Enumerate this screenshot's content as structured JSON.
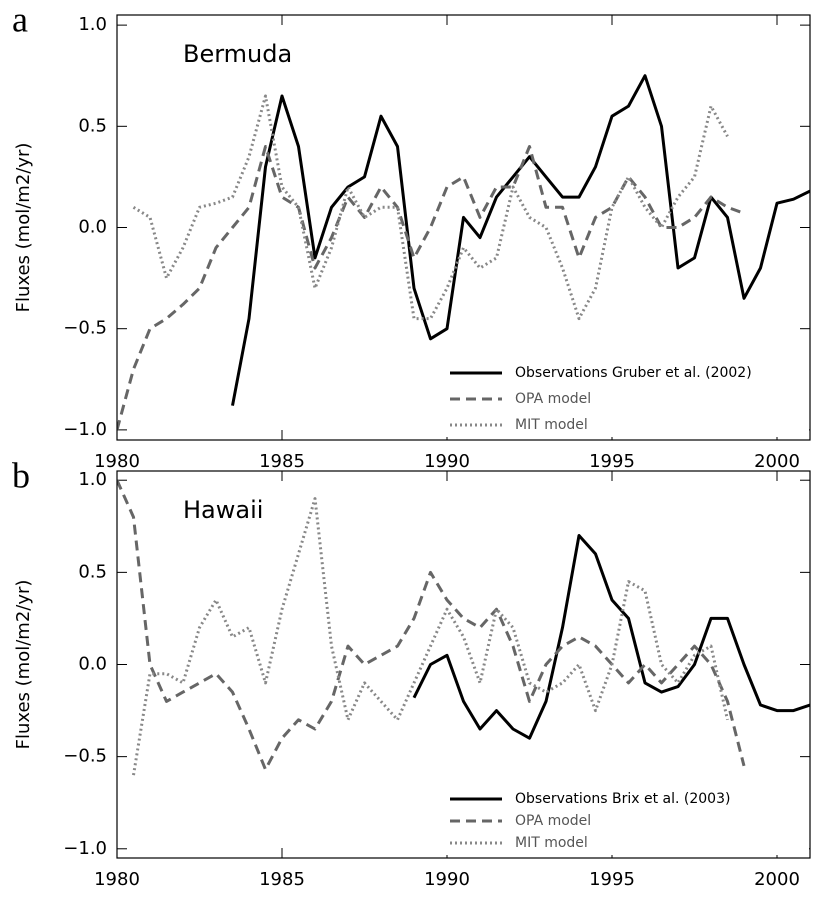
{
  "chart_data": [
    {
      "type": "line",
      "panel_label": "a",
      "title": "Bermuda",
      "ylabel": "Fluxes (mol/m2/yr)",
      "x": [
        1980,
        1980.5,
        1981,
        1981.5,
        1982,
        1982.5,
        1983,
        1983.5,
        1984,
        1984.5,
        1985,
        1985.5,
        1986,
        1986.5,
        1987,
        1987.5,
        1988,
        1988.5,
        1989,
        1989.5,
        1990,
        1990.5,
        1991,
        1991.5,
        1992,
        1992.5,
        1993,
        1993.5,
        1994,
        1994.5,
        1995,
        1995.5,
        1996,
        1996.5,
        1997,
        1997.5,
        1998,
        1998.5,
        1999,
        1999.5,
        2000,
        2000.5,
        2001
      ],
      "series": [
        {
          "name": "Observations Gruber et al. (2002)",
          "color": "#000000",
          "dash": "solid",
          "values": [
            null,
            null,
            null,
            null,
            null,
            null,
            null,
            -0.88,
            -0.45,
            0.3,
            0.65,
            0.4,
            -0.15,
            0.1,
            0.2,
            0.25,
            0.55,
            0.4,
            -0.3,
            -0.55,
            -0.5,
            0.05,
            -0.05,
            0.15,
            0.25,
            0.35,
            0.25,
            0.15,
            0.15,
            0.3,
            0.55,
            0.6,
            0.75,
            0.5,
            -0.2,
            -0.15,
            0.15,
            0.05,
            -0.35,
            -0.2,
            0.12,
            0.14,
            0.18
          ]
        },
        {
          "name": "OPA model",
          "color": "#666666",
          "dash": "dashed",
          "values": [
            -1.0,
            -0.7,
            -0.5,
            -0.45,
            -0.38,
            -0.3,
            -0.1,
            0.0,
            0.1,
            0.4,
            0.15,
            0.1,
            -0.2,
            -0.05,
            0.15,
            0.05,
            0.2,
            0.1,
            -0.15,
            0.0,
            0.2,
            0.25,
            0.05,
            0.2,
            0.2,
            0.4,
            0.1,
            0.1,
            -0.15,
            0.05,
            0.1,
            0.25,
            0.15,
            0.0,
            0.0,
            0.05,
            0.15,
            0.1,
            0.07,
            null,
            null,
            null,
            null
          ]
        },
        {
          "name": "MIT model",
          "color": "#888888",
          "dash": "dotted",
          "values": [
            null,
            0.1,
            0.05,
            -0.25,
            -0.1,
            0.1,
            0.12,
            0.15,
            0.35,
            0.65,
            0.2,
            0.1,
            -0.3,
            -0.1,
            0.2,
            0.05,
            0.1,
            0.1,
            -0.45,
            -0.45,
            -0.3,
            -0.1,
            -0.2,
            -0.15,
            0.2,
            0.05,
            0.0,
            -0.2,
            -0.45,
            -0.3,
            0.1,
            0.25,
            0.1,
            0.0,
            0.15,
            0.25,
            0.6,
            0.45,
            null,
            null,
            null,
            null,
            null
          ]
        }
      ],
      "xlim": [
        1980,
        2001
      ],
      "xticks": [
        1980,
        1985,
        1990,
        1995,
        2000
      ],
      "ylim": [
        -1.05,
        1.05
      ],
      "yticks": [
        {
          "value": -1,
          "label": "−1.0"
        },
        {
          "value": -0.5,
          "label": "−0.5"
        },
        {
          "value": 0,
          "label": "0.0"
        },
        {
          "value": 0.5,
          "label": "0.5"
        },
        {
          "value": 1,
          "label": "1.0"
        }
      ],
      "legend": "lower right"
    },
    {
      "type": "line",
      "panel_label": "b",
      "title": "Hawaii",
      "ylabel": "Fluxes (mol/m2/yr)",
      "x": [
        1980,
        1980.5,
        1981,
        1981.5,
        1982,
        1982.5,
        1983,
        1983.5,
        1984,
        1984.5,
        1985,
        1985.5,
        1986,
        1986.5,
        1987,
        1987.5,
        1988,
        1988.5,
        1989,
        1989.5,
        1990,
        1990.5,
        1991,
        1991.5,
        1992,
        1992.5,
        1993,
        1993.5,
        1994,
        1994.5,
        1995,
        1995.5,
        1996,
        1996.5,
        1997,
        1997.5,
        1998,
        1998.5,
        1999,
        1999.5,
        2000,
        2000.5,
        2001
      ],
      "series": [
        {
          "name": "Observations Brix et al. (2003)",
          "color": "#000000",
          "dash": "solid",
          "values": [
            null,
            null,
            null,
            null,
            null,
            null,
            null,
            null,
            null,
            null,
            null,
            null,
            null,
            null,
            null,
            null,
            null,
            null,
            -0.18,
            0.0,
            0.05,
            -0.2,
            -0.35,
            -0.25,
            -0.35,
            -0.4,
            -0.2,
            0.2,
            0.7,
            0.6,
            0.35,
            0.25,
            -0.1,
            -0.15,
            -0.12,
            0.0,
            0.25,
            0.25,
            0.0,
            -0.22,
            -0.25,
            -0.25,
            -0.22
          ]
        },
        {
          "name": "OPA model",
          "color": "#666666",
          "dash": "dashed",
          "values": [
            1.0,
            0.8,
            0.0,
            -0.2,
            -0.15,
            -0.1,
            -0.05,
            -0.15,
            -0.35,
            -0.57,
            -0.4,
            -0.3,
            -0.35,
            -0.2,
            0.1,
            0.0,
            0.05,
            0.1,
            0.25,
            0.5,
            0.35,
            0.25,
            0.2,
            0.3,
            0.1,
            -0.2,
            0.0,
            0.1,
            0.15,
            0.1,
            0.0,
            -0.1,
            0.0,
            -0.1,
            0.0,
            0.1,
            0.0,
            -0.2,
            -0.55,
            null,
            null,
            null,
            null
          ]
        },
        {
          "name": "MIT model",
          "color": "#888888",
          "dash": "dotted",
          "values": [
            null,
            -0.6,
            -0.05,
            -0.05,
            -0.1,
            0.2,
            0.35,
            0.15,
            0.2,
            -0.1,
            0.3,
            0.6,
            0.9,
            0.1,
            -0.3,
            -0.1,
            -0.2,
            -0.3,
            -0.1,
            0.1,
            0.3,
            0.15,
            -0.1,
            0.3,
            0.2,
            -0.1,
            -0.15,
            -0.1,
            0.0,
            -0.25,
            0.0,
            0.45,
            0.4,
            0.0,
            -0.1,
            0.05,
            0.1,
            -0.3,
            null,
            null,
            null,
            null,
            null
          ]
        }
      ],
      "xlim": [
        1980,
        2001
      ],
      "xticks": [
        1980,
        1985,
        1990,
        1995,
        2000
      ],
      "ylim": [
        -1.05,
        1.05
      ],
      "yticks": [
        {
          "value": -1,
          "label": "−1.0"
        },
        {
          "value": -0.5,
          "label": "−0.5"
        },
        {
          "value": 0,
          "label": "0.0"
        },
        {
          "value": 0.5,
          "label": "0.5"
        },
        {
          "value": 1,
          "label": "1.0"
        }
      ],
      "legend": "lower right"
    }
  ]
}
